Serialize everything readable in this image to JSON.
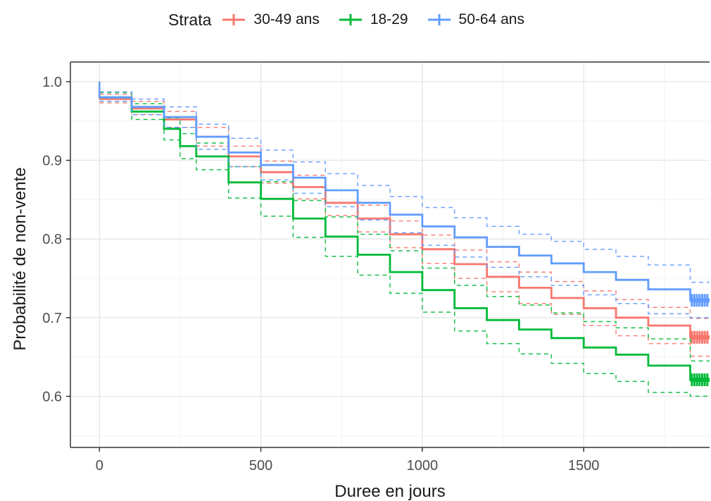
{
  "chart_data": {
    "type": "line",
    "subtype": "kaplan-meier survival curve with confidence bands",
    "title": "",
    "xlabel": "Duree en jours",
    "ylabel": "Probabilité de non-vente",
    "xlim": [
      -90,
      1890
    ],
    "ylim": [
      0.535,
      1.025
    ],
    "x_ticks": [
      0,
      500,
      1000,
      1500
    ],
    "x_tick_labels": [
      "0",
      "500",
      "1000",
      "1500"
    ],
    "y_ticks": [
      0.6,
      0.7,
      0.8,
      0.9,
      1.0
    ],
    "y_tick_labels": [
      "0.6",
      "0.7",
      "0.8",
      "0.9",
      "1.0"
    ],
    "grid": true,
    "legend": {
      "title": "Strata",
      "position": "top"
    },
    "series": [
      {
        "name": "30-49 ans",
        "color": "#F8766D",
        "x": [
          0,
          100,
          200,
          300,
          400,
          500,
          600,
          700,
          800,
          900,
          1000,
          1100,
          1200,
          1300,
          1400,
          1500,
          1600,
          1700,
          1830,
          1900
        ],
        "y": [
          0.978,
          0.966,
          0.952,
          0.93,
          0.905,
          0.885,
          0.866,
          0.846,
          0.826,
          0.806,
          0.787,
          0.768,
          0.752,
          0.738,
          0.725,
          0.712,
          0.7,
          0.69,
          0.675,
          0.675
        ],
        "lower": [
          0.973,
          0.958,
          0.942,
          0.918,
          0.892,
          0.871,
          0.851,
          0.83,
          0.809,
          0.789,
          0.769,
          0.75,
          0.733,
          0.718,
          0.704,
          0.69,
          0.677,
          0.667,
          0.651,
          0.651
        ],
        "upper": [
          0.984,
          0.975,
          0.962,
          0.942,
          0.918,
          0.899,
          0.881,
          0.862,
          0.843,
          0.823,
          0.805,
          0.786,
          0.771,
          0.758,
          0.746,
          0.734,
          0.723,
          0.713,
          0.699,
          0.699
        ]
      },
      {
        "name": "18-29",
        "color": "#00BA38",
        "x": [
          0,
          100,
          200,
          250,
          300,
          400,
          500,
          600,
          700,
          800,
          900,
          1000,
          1100,
          1200,
          1300,
          1400,
          1500,
          1600,
          1700,
          1830,
          1900
        ],
        "y": [
          0.98,
          0.962,
          0.94,
          0.918,
          0.905,
          0.872,
          0.851,
          0.826,
          0.803,
          0.78,
          0.758,
          0.735,
          0.712,
          0.697,
          0.685,
          0.674,
          0.662,
          0.653,
          0.639,
          0.621,
          0.621
        ],
        "lower": [
          0.975,
          0.952,
          0.926,
          0.902,
          0.888,
          0.852,
          0.829,
          0.802,
          0.778,
          0.754,
          0.731,
          0.707,
          0.683,
          0.667,
          0.654,
          0.642,
          0.629,
          0.619,
          0.605,
          0.6,
          0.6
        ],
        "upper": [
          0.986,
          0.972,
          0.954,
          0.934,
          0.922,
          0.892,
          0.873,
          0.849,
          0.828,
          0.806,
          0.785,
          0.763,
          0.741,
          0.727,
          0.716,
          0.706,
          0.695,
          0.687,
          0.673,
          0.645,
          0.645
        ]
      },
      {
        "name": "50-64 ans",
        "color": "#619CFF",
        "x": [
          0,
          100,
          200,
          300,
          400,
          500,
          600,
          700,
          800,
          900,
          1000,
          1100,
          1200,
          1300,
          1400,
          1500,
          1600,
          1700,
          1830,
          1900
        ],
        "y": [
          0.98,
          0.968,
          0.955,
          0.93,
          0.91,
          0.894,
          0.878,
          0.862,
          0.846,
          0.831,
          0.816,
          0.802,
          0.79,
          0.779,
          0.769,
          0.758,
          0.748,
          0.736,
          0.722,
          0.722
        ],
        "lower": [
          0.975,
          0.958,
          0.942,
          0.914,
          0.892,
          0.875,
          0.858,
          0.841,
          0.824,
          0.808,
          0.792,
          0.777,
          0.764,
          0.752,
          0.741,
          0.729,
          0.718,
          0.705,
          0.7,
          0.7
        ],
        "upper": [
          0.987,
          0.978,
          0.968,
          0.946,
          0.928,
          0.913,
          0.898,
          0.883,
          0.868,
          0.854,
          0.84,
          0.827,
          0.816,
          0.806,
          0.797,
          0.787,
          0.778,
          0.767,
          0.745,
          0.745
        ]
      }
    ]
  }
}
